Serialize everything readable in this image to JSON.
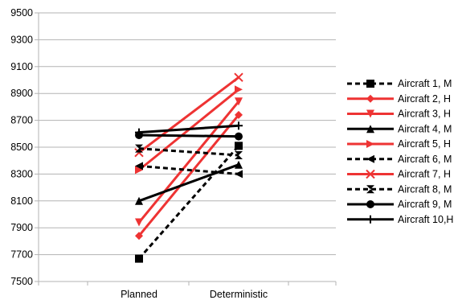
{
  "chart_data": {
    "type": "line",
    "title": "",
    "xlabel": "",
    "ylabel": "",
    "categories": [
      "Planned",
      "Deterministic"
    ],
    "ylim": [
      7500,
      9500
    ],
    "yticks": [
      7500,
      7700,
      7900,
      8100,
      8300,
      8500,
      8700,
      8900,
      9100,
      9300,
      9500
    ],
    "y_tick_labels": [
      "7500",
      "7700",
      "7900",
      "8100",
      "8300",
      "8500",
      "8700",
      "8900",
      "9100",
      "9300",
      "9500"
    ],
    "grid": "horizontal",
    "legend_position": "right",
    "series": [
      {
        "name": "Aircraft 1, M",
        "values": [
          7670,
          8510
        ],
        "color": "#000000",
        "dash": "dashed",
        "marker": "square"
      },
      {
        "name": "Aircraft 2, H",
        "values": [
          7840,
          8740
        ],
        "color": "#ee3333",
        "dash": "solid",
        "marker": "diamond"
      },
      {
        "name": "Aircraft 3, H",
        "values": [
          7940,
          8840
        ],
        "color": "#ee3333",
        "dash": "solid",
        "marker": "triangle-down"
      },
      {
        "name": "Aircraft 4, M",
        "values": [
          8100,
          8370
        ],
        "color": "#000000",
        "dash": "solid",
        "marker": "triangle-up"
      },
      {
        "name": "Aircraft 5, H",
        "values": [
          8330,
          8930
        ],
        "color": "#ee3333",
        "dash": "solid",
        "marker": "triangle-right"
      },
      {
        "name": "Aircraft 6, M",
        "values": [
          8360,
          8300
        ],
        "color": "#000000",
        "dash": "dashed",
        "marker": "triangle-left"
      },
      {
        "name": "Aircraft 7, H",
        "values": [
          8460,
          9020
        ],
        "color": "#ee3333",
        "dash": "solid",
        "marker": "x"
      },
      {
        "name": "Aircraft 8, M",
        "values": [
          8490,
          8440
        ],
        "color": "#000000",
        "dash": "dashed",
        "marker": "hourglass"
      },
      {
        "name": "Aircraft 9, M",
        "values": [
          8590,
          8580
        ],
        "color": "#000000",
        "dash": "solid",
        "marker": "circle"
      },
      {
        "name": "Aircraft 10,H",
        "values": [
          8610,
          8660
        ],
        "color": "#000000",
        "dash": "solid",
        "marker": "plus"
      }
    ]
  }
}
